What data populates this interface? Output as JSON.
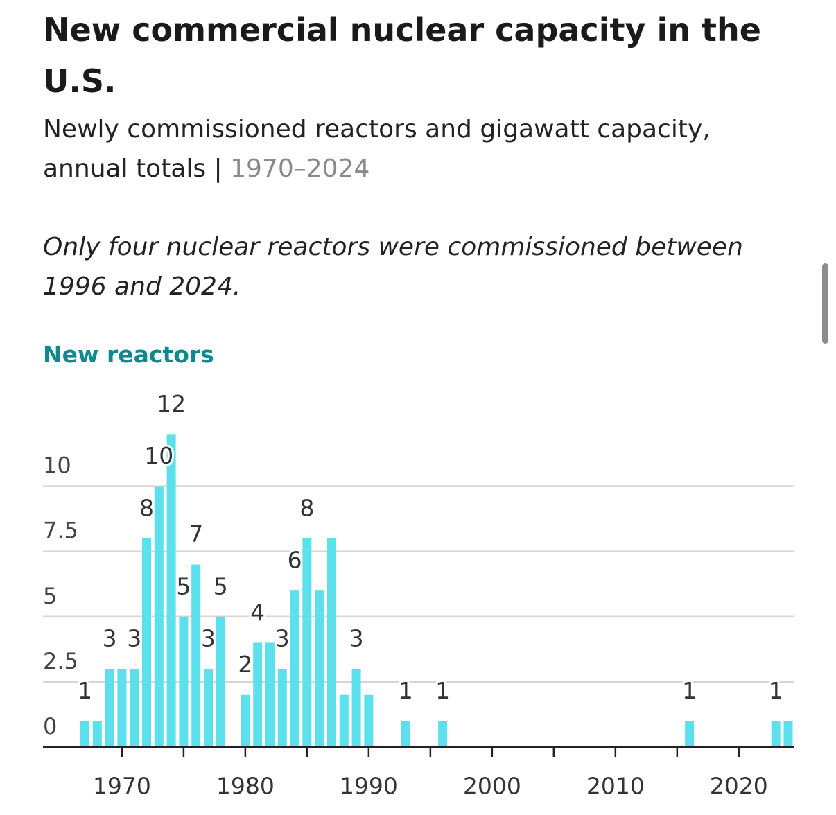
{
  "chart_data": {
    "type": "bar",
    "title": "New commercial nuclear capacity in the U.S.",
    "subtitle": "Newly commissioned reactors and gigawatt capacity, annual totals | ",
    "subtitle_range": "1970–2024",
    "note": "Only four nuclear reactors were commissioned between 1996 and 2024.",
    "panel_title": "New reactors",
    "x": [
      1967,
      1968,
      1969,
      1970,
      1971,
      1972,
      1973,
      1974,
      1975,
      1976,
      1977,
      1978,
      1980,
      1981,
      1982,
      1983,
      1984,
      1985,
      1986,
      1987,
      1988,
      1989,
      1990,
      1993,
      1996,
      2016,
      2023,
      2024
    ],
    "values": [
      1,
      1,
      3,
      3,
      3,
      8,
      10,
      12,
      5,
      7,
      3,
      5,
      2,
      4,
      4,
      3,
      6,
      8,
      6,
      8,
      2,
      3,
      2,
      1,
      1,
      1,
      1,
      1
    ],
    "value_labels": [
      "1",
      null,
      "3",
      null,
      "3",
      "8",
      "10",
      "12",
      "5",
      "7",
      "3",
      "5",
      "2",
      "4",
      null,
      "3",
      "6",
      "8",
      null,
      null,
      null,
      "3",
      null,
      "1",
      "1",
      "1",
      "1",
      null
    ],
    "color": "#5ce1ec",
    "xlim": [
      1963.6,
      2024.45
    ],
    "xticks": [
      1970,
      1980,
      1990,
      2000,
      2010,
      2020
    ],
    "x_minor_ticks": [
      1975,
      1985,
      1995,
      2005,
      2015
    ],
    "ylim": [
      0,
      12.7
    ],
    "yticks": [
      0,
      2.5,
      5,
      7.5,
      10
    ],
    "grid": true
  }
}
